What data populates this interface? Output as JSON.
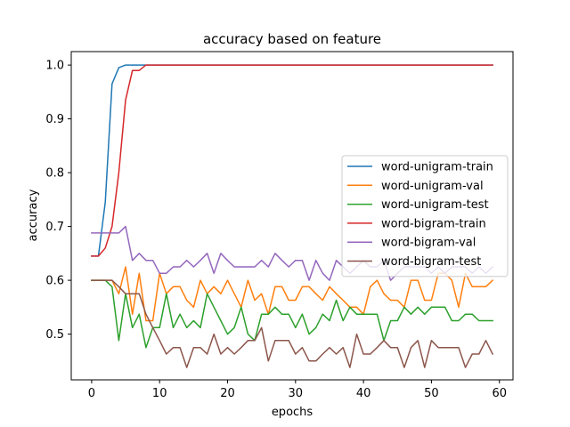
{
  "chart_data": {
    "type": "line",
    "title": "accuracy based on feature",
    "xlabel": "epochs",
    "ylabel": "accuracy",
    "xlim": [
      -3,
      62
    ],
    "ylim": [
      0.415,
      1.025
    ],
    "xticks": [
      0,
      10,
      20,
      30,
      40,
      50,
      60
    ],
    "yticks": [
      0.5,
      0.6,
      0.7,
      0.8,
      0.9,
      1.0
    ],
    "xtick_labels": [
      "0",
      "10",
      "20",
      "30",
      "40",
      "50",
      "60"
    ],
    "ytick_labels": [
      "0.5",
      "0.6",
      "0.7",
      "0.8",
      "0.9",
      "1.0"
    ],
    "grid": false,
    "legend_position": "center-right",
    "x": [
      0,
      1,
      2,
      3,
      4,
      5,
      6,
      7,
      8,
      9,
      10,
      11,
      12,
      13,
      14,
      15,
      16,
      17,
      18,
      19,
      20,
      21,
      22,
      23,
      24,
      25,
      26,
      27,
      28,
      29,
      30,
      31,
      32,
      33,
      34,
      35,
      36,
      37,
      38,
      39,
      40,
      41,
      42,
      43,
      44,
      45,
      46,
      47,
      48,
      49,
      50,
      51,
      52,
      53,
      54,
      55,
      56,
      57,
      58,
      59
    ],
    "series": [
      {
        "name": "word-unigram-train",
        "color": "#1f77b4",
        "values": [
          0.645,
          0.645,
          0.745,
          0.965,
          0.995,
          1.0,
          1.0,
          1.0,
          1.0,
          1.0,
          1.0,
          1.0,
          1.0,
          1.0,
          1.0,
          1.0,
          1.0,
          1.0,
          1.0,
          1.0,
          1.0,
          1.0,
          1.0,
          1.0,
          1.0,
          1.0,
          1.0,
          1.0,
          1.0,
          1.0,
          1.0,
          1.0,
          1.0,
          1.0,
          1.0,
          1.0,
          1.0,
          1.0,
          1.0,
          1.0,
          1.0,
          1.0,
          1.0,
          1.0,
          1.0,
          1.0,
          1.0,
          1.0,
          1.0,
          1.0,
          1.0,
          1.0,
          1.0,
          1.0,
          1.0,
          1.0,
          1.0,
          1.0,
          1.0,
          1.0
        ]
      },
      {
        "name": "word-unigram-val",
        "color": "#ff7f0e",
        "values": [
          0.6,
          0.6,
          0.6,
          0.6,
          0.575,
          0.625,
          0.537,
          0.613,
          0.525,
          0.525,
          0.613,
          0.575,
          0.588,
          0.588,
          0.563,
          0.55,
          0.6,
          0.575,
          0.588,
          0.575,
          0.6,
          0.575,
          0.55,
          0.6,
          0.563,
          0.575,
          0.537,
          0.588,
          0.588,
          0.563,
          0.563,
          0.588,
          0.588,
          0.575,
          0.563,
          0.588,
          0.575,
          0.563,
          0.55,
          0.55,
          0.537,
          0.588,
          0.6,
          0.575,
          0.563,
          0.563,
          0.55,
          0.6,
          0.6,
          0.563,
          0.563,
          0.613,
          0.613,
          0.6,
          0.55,
          0.613,
          0.588,
          0.588,
          0.588,
          0.6
        ]
      },
      {
        "name": "word-unigram-test",
        "color": "#2ca02c",
        "values": [
          0.6,
          0.6,
          0.6,
          0.588,
          0.488,
          0.575,
          0.512,
          0.537,
          0.475,
          0.512,
          0.512,
          0.575,
          0.512,
          0.537,
          0.512,
          0.525,
          0.512,
          0.575,
          0.55,
          0.525,
          0.5,
          0.512,
          0.55,
          0.5,
          0.488,
          0.537,
          0.537,
          0.55,
          0.537,
          0.537,
          0.512,
          0.537,
          0.5,
          0.512,
          0.537,
          0.525,
          0.563,
          0.525,
          0.55,
          0.537,
          0.537,
          0.537,
          0.537,
          0.488,
          0.525,
          0.525,
          0.55,
          0.537,
          0.55,
          0.537,
          0.55,
          0.55,
          0.55,
          0.525,
          0.525,
          0.537,
          0.537,
          0.525,
          0.525,
          0.525
        ]
      },
      {
        "name": "word-bigram-train",
        "color": "#d62728",
        "values": [
          0.645,
          0.645,
          0.66,
          0.7,
          0.8,
          0.935,
          0.99,
          0.99,
          1.0,
          1.0,
          1.0,
          1.0,
          1.0,
          1.0,
          1.0,
          1.0,
          1.0,
          1.0,
          1.0,
          1.0,
          1.0,
          1.0,
          1.0,
          1.0,
          1.0,
          1.0,
          1.0,
          1.0,
          1.0,
          1.0,
          1.0,
          1.0,
          1.0,
          1.0,
          1.0,
          1.0,
          1.0,
          1.0,
          1.0,
          1.0,
          1.0,
          1.0,
          1.0,
          1.0,
          1.0,
          1.0,
          1.0,
          1.0,
          1.0,
          1.0,
          1.0,
          1.0,
          1.0,
          1.0,
          1.0,
          1.0,
          1.0,
          1.0,
          1.0,
          1.0
        ]
      },
      {
        "name": "word-bigram-val",
        "color": "#9467bd",
        "values": [
          0.688,
          0.688,
          0.688,
          0.688,
          0.688,
          0.7,
          0.637,
          0.65,
          0.637,
          0.637,
          0.613,
          0.613,
          0.625,
          0.625,
          0.637,
          0.625,
          0.637,
          0.65,
          0.613,
          0.65,
          0.637,
          0.625,
          0.625,
          0.625,
          0.625,
          0.637,
          0.625,
          0.65,
          0.637,
          0.625,
          0.637,
          0.637,
          0.6,
          0.637,
          0.613,
          0.6,
          0.637,
          0.625,
          0.613,
          0.625,
          0.637,
          0.625,
          0.625,
          0.637,
          0.6,
          0.613,
          0.625,
          0.625,
          0.625,
          0.625,
          0.613,
          0.625,
          0.613,
          0.625,
          0.625,
          0.625,
          0.613,
          0.625,
          0.613,
          0.625
        ]
      },
      {
        "name": "word-bigram-test",
        "color": "#8c564b",
        "values": [
          0.6,
          0.6,
          0.6,
          0.6,
          0.588,
          0.575,
          0.575,
          0.575,
          0.537,
          0.512,
          0.488,
          0.463,
          0.475,
          0.475,
          0.438,
          0.475,
          0.475,
          0.463,
          0.5,
          0.463,
          0.475,
          0.463,
          0.475,
          0.488,
          0.488,
          0.512,
          0.45,
          0.488,
          0.488,
          0.488,
          0.463,
          0.475,
          0.45,
          0.45,
          0.463,
          0.475,
          0.463,
          0.475,
          0.438,
          0.5,
          0.463,
          0.463,
          0.475,
          0.488,
          0.475,
          0.475,
          0.438,
          0.475,
          0.488,
          0.438,
          0.488,
          0.475,
          0.475,
          0.475,
          0.475,
          0.438,
          0.463,
          0.463,
          0.488,
          0.463
        ]
      }
    ]
  }
}
